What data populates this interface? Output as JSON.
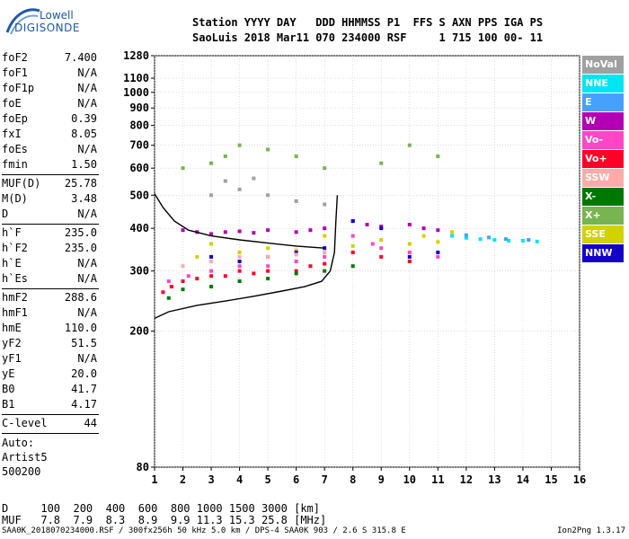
{
  "brand": {
    "line1": "Lowell",
    "line2": "DIGISONDE"
  },
  "header": {
    "line1": "Station YYYY DAY   DDD HHMMSS P1  FFS S AXN PPS IGA PS",
    "line2": "SaoLuis 2018 Mar11 070 234000 RSF     1 715 100 00- 11"
  },
  "params": [
    [
      {
        "k": "foF2",
        "v": "7.400"
      },
      {
        "k": "foF1",
        "v": "N/A"
      },
      {
        "k": "foF1p",
        "v": "N/A"
      },
      {
        "k": "foE",
        "v": "N/A"
      },
      {
        "k": "foEp",
        "v": "0.39"
      },
      {
        "k": "fxI",
        "v": "8.05"
      },
      {
        "k": "foEs",
        "v": "N/A"
      },
      {
        "k": "fmin",
        "v": "1.50"
      }
    ],
    [
      {
        "k": "MUF(D)",
        "v": "25.78"
      },
      {
        "k": "M(D)",
        "v": "3.48"
      },
      {
        "k": "D",
        "v": "N/A"
      }
    ],
    [
      {
        "k": "h`F",
        "v": "235.0"
      },
      {
        "k": "h`F2",
        "v": "235.0"
      },
      {
        "k": "h`E",
        "v": "N/A"
      },
      {
        "k": "h`Es",
        "v": "N/A"
      }
    ],
    [
      {
        "k": "hmF2",
        "v": "288.6"
      },
      {
        "k": "hmF1",
        "v": "N/A"
      },
      {
        "k": "hmE",
        "v": "110.0"
      },
      {
        "k": "yF2",
        "v": "51.5"
      },
      {
        "k": "yF1",
        "v": "N/A"
      },
      {
        "k": "yE",
        "v": "20.0"
      },
      {
        "k": "B0",
        "v": "41.7"
      },
      {
        "k": "B1",
        "v": "4.17"
      }
    ],
    [
      {
        "k": "C-level",
        "v": "44"
      }
    ]
  ],
  "auto": [
    "Auto:",
    "Artist5",
    "500200"
  ],
  "legend": [
    {
      "label": "NoVal",
      "color": "#a0a0a0"
    },
    {
      "label": "NNE",
      "color": "#00e6f0"
    },
    {
      "label": "E",
      "color": "#46a0ff"
    },
    {
      "label": "W",
      "color": "#b400b4"
    },
    {
      "label": "Vo-",
      "color": "#ff46c8"
    },
    {
      "label": "Vo+",
      "color": "#ff0028"
    },
    {
      "label": "SSW",
      "color": "#ffaaaa"
    },
    {
      "label": "X-",
      "color": "#007800"
    },
    {
      "label": "X+",
      "color": "#78b450"
    },
    {
      "label": "SSE",
      "color": "#d2d200"
    },
    {
      "label": "NNW",
      "color": "#1400c8"
    }
  ],
  "bottom": {
    "line1": "D     100  200  400  600  800 1000 1500 3000 [km]",
    "line2": "MUF   7.8  7.9  8.3  8.9  9.9 11.3 15.3 25.8 [MHz]"
  },
  "footer": {
    "left": "SAA0K_2018070234000.RSF / 300fx256h 50 kHz 5.0 km / DPS-4 SAA0K 903 / 2.6 S 315.8 E",
    "right": "Ion2Png 1.3.17"
  },
  "chart_data": {
    "type": "scatter",
    "title": "",
    "xlabel": "",
    "ylabel": "",
    "xlim": [
      1,
      16
    ],
    "ylim": [
      80,
      1280
    ],
    "yscale": "log",
    "xticks": [
      1,
      2,
      3,
      4,
      5,
      6,
      7,
      8,
      9,
      10,
      11,
      12,
      13,
      14,
      15,
      16
    ],
    "yticks": [
      80,
      200,
      300,
      400,
      500,
      600,
      700,
      800,
      900,
      1000,
      1100,
      1280
    ],
    "grid": true,
    "series": [
      {
        "color": "#b400b4",
        "points": [
          [
            2,
            395
          ],
          [
            2.5,
            390
          ],
          [
            3,
            385
          ],
          [
            3.5,
            390
          ],
          [
            4,
            392
          ],
          [
            4.5,
            388
          ],
          [
            5,
            395
          ],
          [
            6,
            390
          ],
          [
            6.5,
            395
          ],
          [
            7,
            400
          ],
          [
            8,
            420
          ],
          [
            8.5,
            410
          ],
          [
            9,
            405
          ],
          [
            10,
            410
          ],
          [
            10.5,
            400
          ],
          [
            11,
            395
          ]
        ]
      },
      {
        "color": "#ff0028",
        "points": [
          [
            1.3,
            260
          ],
          [
            1.6,
            270
          ],
          [
            2,
            280
          ],
          [
            2.5,
            285
          ],
          [
            3,
            290
          ],
          [
            3.5,
            290
          ],
          [
            4,
            300
          ],
          [
            4.5,
            295
          ],
          [
            5,
            300
          ],
          [
            6,
            300
          ],
          [
            6.5,
            310
          ],
          [
            7,
            315
          ],
          [
            8,
            340
          ],
          [
            9,
            330
          ],
          [
            10,
            320
          ]
        ]
      },
      {
        "color": "#ff46c8",
        "points": [
          [
            1.5,
            280
          ],
          [
            2.2,
            290
          ],
          [
            3,
            300
          ],
          [
            4,
            310
          ],
          [
            5,
            310
          ],
          [
            6,
            320
          ],
          [
            7,
            330
          ],
          [
            8,
            380
          ],
          [
            8.7,
            360
          ],
          [
            9,
            350
          ],
          [
            10,
            340
          ],
          [
            11,
            330
          ]
        ]
      },
      {
        "color": "#d2d200",
        "points": [
          [
            2.5,
            330
          ],
          [
            3,
            360
          ],
          [
            4,
            340
          ],
          [
            5,
            350
          ],
          [
            6,
            345
          ],
          [
            7,
            380
          ],
          [
            8,
            355
          ],
          [
            9,
            370
          ],
          [
            10,
            360
          ],
          [
            10.5,
            380
          ],
          [
            11,
            365
          ],
          [
            11.5,
            390
          ]
        ]
      },
      {
        "color": "#00e6f0",
        "points": [
          [
            11.5,
            380
          ],
          [
            12,
            375
          ],
          [
            12.5,
            372
          ],
          [
            13,
            370
          ],
          [
            13.5,
            368
          ],
          [
            14,
            368
          ],
          [
            14.5,
            366
          ]
        ]
      },
      {
        "color": "#46a0ff",
        "points": [
          [
            12,
            382
          ],
          [
            12.8,
            376
          ],
          [
            13.4,
            372
          ],
          [
            14.2,
            370
          ]
        ]
      },
      {
        "color": "#1400c8",
        "points": [
          [
            3,
            330
          ],
          [
            4,
            320
          ],
          [
            5,
            330
          ],
          [
            6,
            340
          ],
          [
            7,
            350
          ],
          [
            8,
            420
          ],
          [
            9,
            400
          ],
          [
            10,
            330
          ],
          [
            11,
            340
          ]
        ]
      },
      {
        "color": "#007800",
        "points": [
          [
            1.5,
            250
          ],
          [
            2,
            265
          ],
          [
            3,
            270
          ],
          [
            4,
            280
          ],
          [
            5,
            285
          ],
          [
            6,
            295
          ],
          [
            7,
            300
          ],
          [
            8,
            310
          ]
        ]
      },
      {
        "color": "#78b450",
        "points": [
          [
            2,
            600
          ],
          [
            3,
            620
          ],
          [
            3.5,
            650
          ],
          [
            4,
            700
          ],
          [
            5,
            680
          ],
          [
            6,
            650
          ],
          [
            7,
            600
          ],
          [
            9,
            620
          ],
          [
            10,
            700
          ],
          [
            11,
            650
          ]
        ]
      },
      {
        "color": "#ffaaaa",
        "points": [
          [
            2,
            310
          ],
          [
            3,
            320
          ],
          [
            4,
            330
          ],
          [
            5,
            330
          ],
          [
            6,
            335
          ],
          [
            7,
            340
          ]
        ]
      },
      {
        "color": "#a0a0a0",
        "points": [
          [
            3,
            500
          ],
          [
            3.5,
            550
          ],
          [
            4,
            520
          ],
          [
            4.5,
            560
          ],
          [
            5,
            500
          ],
          [
            6,
            480
          ],
          [
            7,
            470
          ]
        ]
      }
    ],
    "tracings": [
      {
        "name": "trace-upper",
        "points": [
          [
            1.0,
            505
          ],
          [
            1.3,
            460
          ],
          [
            1.7,
            420
          ],
          [
            2.2,
            395
          ],
          [
            3.0,
            380
          ],
          [
            4.0,
            370
          ],
          [
            5.0,
            362
          ],
          [
            6.0,
            355
          ],
          [
            6.6,
            352
          ],
          [
            7.0,
            350
          ]
        ]
      },
      {
        "name": "trace-lower",
        "points": [
          [
            1.0,
            218
          ],
          [
            1.5,
            228
          ],
          [
            2.5,
            238
          ],
          [
            3.5,
            245
          ],
          [
            4.5,
            253
          ],
          [
            5.5,
            262
          ],
          [
            6.3,
            270
          ],
          [
            6.9,
            280
          ],
          [
            7.2,
            300
          ],
          [
            7.35,
            340
          ],
          [
            7.4,
            420
          ],
          [
            7.45,
            500
          ]
        ]
      }
    ]
  }
}
